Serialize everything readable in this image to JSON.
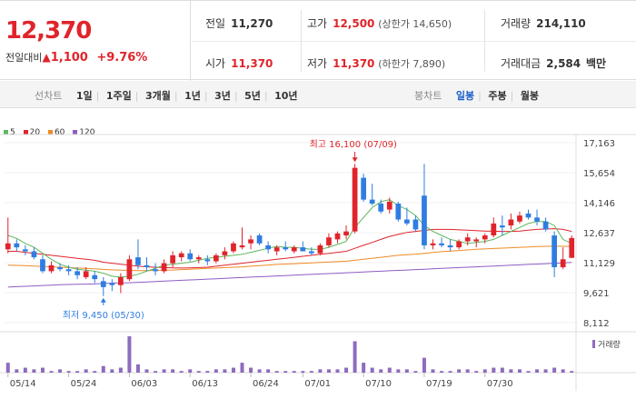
{
  "header": {
    "price": "12,370",
    "change_label": "전일대비",
    "change_arrow": "▲",
    "change_amount": "1,100",
    "change_pct": "+9.76%"
  },
  "stats": {
    "prev_close_label": "전일",
    "prev_close": "11,270",
    "open_label": "시가",
    "open": "11,370",
    "high_label": "고가",
    "high": "12,500",
    "upper_limit": "(상한가 14,650)",
    "low_label": "저가",
    "low": "11,370",
    "lower_limit": "(하한가 7,890)",
    "volume_label": "거래량",
    "volume": "214,110",
    "amount_label": "거래대금",
    "amount": "2,584",
    "amount_unit": "백만"
  },
  "toolbar": {
    "line_chart_label": "선차트",
    "ranges": [
      "1일",
      "1주일",
      "3개월",
      "1년",
      "3년",
      "5년",
      "10년"
    ],
    "candle_label": "봉차트",
    "periods": [
      "일봉",
      "주봉",
      "월봉"
    ],
    "selected_period": "일봉"
  },
  "colors": {
    "up": "#e0242b",
    "down": "#2f7de1",
    "ma5": "#5cb85c",
    "ma20": "#e0242b",
    "ma60": "#f08a24",
    "ma120": "#8e5cc4",
    "volume": "#8e6bbf"
  },
  "chart_data": {
    "type": "candlestick",
    "legend": [
      {
        "name": "5",
        "color": "#5cb85c"
      },
      {
        "name": "20",
        "color": "#e0242b"
      },
      {
        "name": "60",
        "color": "#f08a24"
      },
      {
        "name": "120",
        "color": "#8e5cc4"
      }
    ],
    "y_ticks": [
      "17,163",
      "15,654",
      "14,146",
      "12,637",
      "11,129",
      "9,621",
      "8,112"
    ],
    "ylim": [
      8112,
      17163
    ],
    "x_ticks": [
      "05/14",
      "05/24",
      "06/03",
      "06/13",
      "06/24",
      "07/01",
      "07/10",
      "07/19",
      "07/30"
    ],
    "annotations": {
      "max": "최고 16,100 (07/09)",
      "min": "최저 9,450 (05/30)"
    },
    "volume_label": "거래량",
    "candles": [
      {
        "o": 11800,
        "h": 13400,
        "l": 11600,
        "c": 12100
      },
      {
        "o": 12100,
        "h": 12300,
        "l": 11700,
        "c": 11900
      },
      {
        "o": 11800,
        "h": 12000,
        "l": 11500,
        "c": 11700
      },
      {
        "o": 11700,
        "h": 11900,
        "l": 11300,
        "c": 11400
      },
      {
        "o": 11300,
        "h": 11500,
        "l": 10600,
        "c": 10700
      },
      {
        "o": 10700,
        "h": 11200,
        "l": 10600,
        "c": 11000
      },
      {
        "o": 10900,
        "h": 11100,
        "l": 10700,
        "c": 10800
      },
      {
        "o": 10800,
        "h": 11000,
        "l": 10500,
        "c": 10700
      },
      {
        "o": 10700,
        "h": 10900,
        "l": 10300,
        "c": 10500
      },
      {
        "o": 10400,
        "h": 10900,
        "l": 10300,
        "c": 10700
      },
      {
        "o": 10500,
        "h": 10700,
        "l": 10100,
        "c": 10300
      },
      {
        "o": 10200,
        "h": 10400,
        "l": 9450,
        "c": 9900
      },
      {
        "o": 10100,
        "h": 10300,
        "l": 9700,
        "c": 10000
      },
      {
        "o": 10000,
        "h": 10600,
        "l": 9600,
        "c": 10400
      },
      {
        "o": 10300,
        "h": 11500,
        "l": 10200,
        "c": 11300
      },
      {
        "o": 11400,
        "h": 12300,
        "l": 10800,
        "c": 11000
      },
      {
        "o": 11000,
        "h": 11400,
        "l": 10700,
        "c": 10900
      },
      {
        "o": 10800,
        "h": 11100,
        "l": 10500,
        "c": 10700
      },
      {
        "o": 10700,
        "h": 11300,
        "l": 10600,
        "c": 11100
      },
      {
        "o": 11100,
        "h": 11700,
        "l": 10900,
        "c": 11500
      },
      {
        "o": 11400,
        "h": 11700,
        "l": 11200,
        "c": 11600
      },
      {
        "o": 11600,
        "h": 11800,
        "l": 11200,
        "c": 11300
      },
      {
        "o": 11300,
        "h": 11500,
        "l": 11100,
        "c": 11400
      },
      {
        "o": 11300,
        "h": 11500,
        "l": 11000,
        "c": 11200
      },
      {
        "o": 11200,
        "h": 11600,
        "l": 11100,
        "c": 11500
      },
      {
        "o": 11500,
        "h": 11900,
        "l": 11300,
        "c": 11700
      },
      {
        "o": 11700,
        "h": 12200,
        "l": 11600,
        "c": 12100
      },
      {
        "o": 11900,
        "h": 12900,
        "l": 11800,
        "c": 12000
      },
      {
        "o": 12100,
        "h": 12500,
        "l": 11800,
        "c": 12300
      },
      {
        "o": 12500,
        "h": 12600,
        "l": 12000,
        "c": 12100
      },
      {
        "o": 12000,
        "h": 12200,
        "l": 11600,
        "c": 11800
      },
      {
        "o": 11700,
        "h": 12000,
        "l": 11500,
        "c": 11900
      },
      {
        "o": 11900,
        "h": 12200,
        "l": 11700,
        "c": 11800
      },
      {
        "o": 11700,
        "h": 12000,
        "l": 11600,
        "c": 11900
      },
      {
        "o": 11900,
        "h": 12200,
        "l": 11700,
        "c": 11700
      },
      {
        "o": 11700,
        "h": 11900,
        "l": 11500,
        "c": 11600
      },
      {
        "o": 11600,
        "h": 12100,
        "l": 11500,
        "c": 12000
      },
      {
        "o": 12000,
        "h": 12600,
        "l": 11900,
        "c": 12400
      },
      {
        "o": 12300,
        "h": 12700,
        "l": 12100,
        "c": 12600
      },
      {
        "o": 12500,
        "h": 13000,
        "l": 12300,
        "c": 12700
      },
      {
        "o": 12700,
        "h": 16100,
        "l": 12600,
        "c": 15900
      },
      {
        "o": 15400,
        "h": 15600,
        "l": 14200,
        "c": 14300
      },
      {
        "o": 14300,
        "h": 15100,
        "l": 14000,
        "c": 14100
      },
      {
        "o": 14100,
        "h": 14300,
        "l": 13600,
        "c": 13700
      },
      {
        "o": 13800,
        "h": 14400,
        "l": 13600,
        "c": 14200
      },
      {
        "o": 14100,
        "h": 14200,
        "l": 13200,
        "c": 13300
      },
      {
        "o": 13300,
        "h": 13900,
        "l": 13000,
        "c": 13100
      },
      {
        "o": 13300,
        "h": 13500,
        "l": 12700,
        "c": 12800
      },
      {
        "o": 14500,
        "h": 16100,
        "l": 11800,
        "c": 12000
      },
      {
        "o": 12000,
        "h": 12300,
        "l": 11800,
        "c": 12100
      },
      {
        "o": 12100,
        "h": 12400,
        "l": 11900,
        "c": 12000
      },
      {
        "o": 12000,
        "h": 12300,
        "l": 11700,
        "c": 11900
      },
      {
        "o": 11900,
        "h": 12300,
        "l": 11800,
        "c": 12200
      },
      {
        "o": 12200,
        "h": 12600,
        "l": 12000,
        "c": 12400
      },
      {
        "o": 12200,
        "h": 12400,
        "l": 11900,
        "c": 12300
      },
      {
        "o": 12300,
        "h": 12600,
        "l": 12100,
        "c": 12500
      },
      {
        "o": 12500,
        "h": 13400,
        "l": 12400,
        "c": 13100
      },
      {
        "o": 13000,
        "h": 13500,
        "l": 12500,
        "c": 12900
      },
      {
        "o": 13000,
        "h": 13600,
        "l": 12800,
        "c": 13300
      },
      {
        "o": 13200,
        "h": 13700,
        "l": 13100,
        "c": 13500
      },
      {
        "o": 13600,
        "h": 13800,
        "l": 13300,
        "c": 13400
      },
      {
        "o": 13400,
        "h": 13800,
        "l": 13000,
        "c": 13200
      },
      {
        "o": 13200,
        "h": 13400,
        "l": 12700,
        "c": 12800
      },
      {
        "o": 12500,
        "h": 12700,
        "l": 10400,
        "c": 10900
      },
      {
        "o": 10900,
        "h": 11900,
        "l": 10800,
        "c": 11300
      },
      {
        "o": 11370,
        "h": 12500,
        "l": 11370,
        "c": 12370
      }
    ],
    "ma5": [
      12500,
      12350,
      12100,
      11900,
      11600,
      11300,
      11050,
      10900,
      10800,
      10750,
      10700,
      10600,
      10450,
      10400,
      10450,
      10550,
      10700,
      10850,
      11000,
      11050,
      11100,
      11150,
      11250,
      11350,
      11400,
      11450,
      11500,
      11550,
      11650,
      11750,
      11850,
      11950,
      11900,
      11900,
      11850,
      11800,
      11800,
      11900,
      12050,
      12200,
      12900,
      13400,
      13900,
      14200,
      14300,
      14000,
      13800,
      13500,
      13000,
      12700,
      12500,
      12300,
      12200,
      12100,
      12150,
      12200,
      12300,
      12500,
      12700,
      12900,
      13100,
      13200,
      13200,
      13000,
      12300,
      12100
    ],
    "ma20": [
      11700,
      11700,
      11650,
      11600,
      11550,
      11500,
      11450,
      11400,
      11350,
      11300,
      11250,
      11150,
      11100,
      11050,
      11000,
      10950,
      10920,
      10900,
      10880,
      10870,
      10860,
      10870,
      10880,
      10900,
      10950,
      11000,
      11050,
      11100,
      11150,
      11200,
      11250,
      11300,
      11350,
      11400,
      11450,
      11500,
      11550,
      11600,
      11650,
      11700,
      11850,
      12000,
      12150,
      12300,
      12450,
      12550,
      12650,
      12700,
      12750,
      12800,
      12800,
      12800,
      12780,
      12760,
      12740,
      12720,
      12710,
      12700,
      12700,
      12720,
      12760,
      12800,
      12820,
      12840,
      12800,
      12700
    ],
    "ma60": [
      11000,
      10990,
      10980,
      10960,
      10940,
      10920,
      10900,
      10880,
      10860,
      10840,
      10820,
      10790,
      10770,
      10750,
      10740,
      10730,
      10730,
      10740,
      10750,
      10760,
      10780,
      10800,
      10820,
      10840,
      10860,
      10880,
      10900,
      10920,
      10950,
      10980,
      11010,
      11040,
      11060,
      11080,
      11100,
      11120,
      11140,
      11160,
      11180,
      11200,
      11250,
      11300,
      11350,
      11400,
      11450,
      11500,
      11530,
      11560,
      11600,
      11640,
      11680,
      11710,
      11740,
      11770,
      11800,
      11820,
      11840,
      11860,
      11880,
      11900,
      11920,
      11940,
      11950,
      11960,
      11950,
      11950
    ],
    "ma120": [
      9900,
      9920,
      9940,
      9960,
      9980,
      10000,
      10020,
      10030,
      10040,
      10050,
      10060,
      10080,
      10100,
      10110,
      10120,
      10140,
      10160,
      10180,
      10200,
      10220,
      10240,
      10260,
      10280,
      10300,
      10320,
      10340,
      10360,
      10380,
      10400,
      10420,
      10440,
      10460,
      10480,
      10500,
      10520,
      10540,
      10560,
      10580,
      10600,
      10620,
      10640,
      10660,
      10680,
      10700,
      10720,
      10740,
      10760,
      10780,
      10800,
      10820,
      10840,
      10860,
      10880,
      10900,
      10920,
      10940,
      10960,
      10980,
      11000,
      11020,
      11040,
      11060,
      11080,
      11100,
      11120,
      11140
    ],
    "volume": [
      6,
      2,
      3,
      2,
      3,
      1,
      2,
      1,
      1,
      2,
      1,
      4,
      2,
      3,
      22,
      5,
      2,
      1,
      2,
      2,
      1,
      2,
      1,
      1,
      2,
      2,
      3,
      6,
      3,
      2,
      2,
      1,
      1,
      1,
      1,
      1,
      2,
      2,
      2,
      3,
      19,
      6,
      3,
      2,
      3,
      2,
      2,
      1,
      9,
      2,
      1,
      1,
      2,
      2,
      1,
      2,
      3,
      3,
      2,
      2,
      1,
      2,
      2,
      3,
      2,
      1
    ]
  }
}
